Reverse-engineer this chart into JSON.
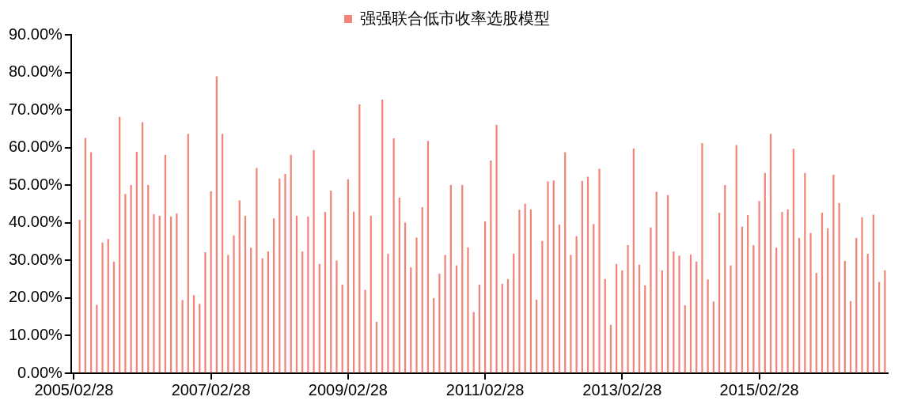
{
  "chart_data": {
    "type": "bar",
    "categories": [
      "2005/02/28",
      null,
      null,
      null,
      null,
      null,
      null,
      null,
      null,
      null,
      null,
      null,
      null,
      null,
      null,
      null,
      null,
      null,
      null,
      null,
      null,
      null,
      null,
      null,
      "2007/02/28",
      null,
      null,
      null,
      null,
      null,
      null,
      null,
      null,
      null,
      null,
      null,
      null,
      null,
      null,
      null,
      null,
      null,
      null,
      null,
      null,
      null,
      null,
      null,
      "2009/02/28",
      null,
      null,
      null,
      null,
      null,
      null,
      null,
      null,
      null,
      null,
      null,
      null,
      null,
      null,
      null,
      null,
      null,
      null,
      null,
      null,
      null,
      null,
      null,
      "2011/02/28",
      null,
      null,
      null,
      null,
      null,
      null,
      null,
      null,
      null,
      null,
      null,
      null,
      null,
      null,
      null,
      null,
      null,
      null,
      null,
      null,
      null,
      null,
      null,
      "2013/02/28",
      null,
      null,
      null,
      null,
      null,
      null,
      null,
      null,
      null,
      null,
      null,
      null,
      null,
      null,
      null,
      null,
      null,
      null,
      null,
      null,
      null,
      null,
      null,
      "2015/02/28",
      null,
      null,
      null,
      null,
      null,
      null,
      null,
      null,
      null,
      null,
      null,
      null,
      null,
      null,
      null,
      null,
      null,
      null,
      null,
      null,
      null,
      null
    ],
    "series": [
      {
        "name": "强强联合低市收率选股模型",
        "color": "#f0867a",
        "values": [
          null,
          40.7,
          62.5,
          58.7,
          18.1,
          34.7,
          35.6,
          29.6,
          68.1,
          47.6,
          50.0,
          58.8,
          66.7,
          50.0,
          42.2,
          41.8,
          58.0,
          41.6,
          42.4,
          19.4,
          63.6,
          20.7,
          18.4,
          32.1,
          48.3,
          78.9,
          63.6,
          31.4,
          36.6,
          45.9,
          41.8,
          33.3,
          54.5,
          30.5,
          32.3,
          41.1,
          51.7,
          52.9,
          58.0,
          41.8,
          32.3,
          41.6,
          59.3,
          29.0,
          42.8,
          48.5,
          29.9,
          23.5,
          51.5,
          42.9,
          71.4,
          22.1,
          41.8,
          13.6,
          72.7,
          31.7,
          62.4,
          46.6,
          40.0,
          28.1,
          36.0,
          44.1,
          61.7,
          19.9,
          26.4,
          31.4,
          50.0,
          28.6,
          50.0,
          33.4,
          16.2,
          23.5,
          40.3,
          56.5,
          66.0,
          23.7,
          25.0,
          31.7,
          43.4,
          45.0,
          43.5,
          19.5,
          35.1,
          50.9,
          51.2,
          39.5,
          58.7,
          31.4,
          36.4,
          51.1,
          52.2,
          39.6,
          54.3,
          25.0,
          12.8,
          29.0,
          27.3,
          34.0,
          59.7,
          28.8,
          23.3,
          38.7,
          48.2,
          27.3,
          47.3,
          32.3,
          31.2,
          18.0,
          31.5,
          29.6,
          61.1,
          24.9,
          19.0,
          42.6,
          50.0,
          28.6,
          60.6,
          38.9,
          42.0,
          34.0,
          45.7,
          53.2,
          63.6,
          33.3,
          42.8,
          43.5,
          59.6,
          35.9,
          53.2,
          37.2,
          26.6,
          42.6,
          38.5,
          52.7,
          45.2,
          29.8,
          19.1,
          35.9,
          41.4,
          31.7,
          42.1,
          24.2,
          27.3
        ]
      }
    ],
    "ylim": [
      0,
      90
    ],
    "yticks": [
      {
        "value": 0,
        "label": "0.00%"
      },
      {
        "value": 10,
        "label": "10.00%"
      },
      {
        "value": 20,
        "label": "20.00%"
      },
      {
        "value": 30,
        "label": "30.00%"
      },
      {
        "value": 40,
        "label": "40.00%"
      },
      {
        "value": 50,
        "label": "50.00%"
      },
      {
        "value": 60,
        "label": "60.00%"
      },
      {
        "value": 70,
        "label": "70.00%"
      },
      {
        "value": 80,
        "label": "80.00%"
      },
      {
        "value": 90,
        "label": "90.00%"
      }
    ],
    "grid": false,
    "legend": "top"
  }
}
